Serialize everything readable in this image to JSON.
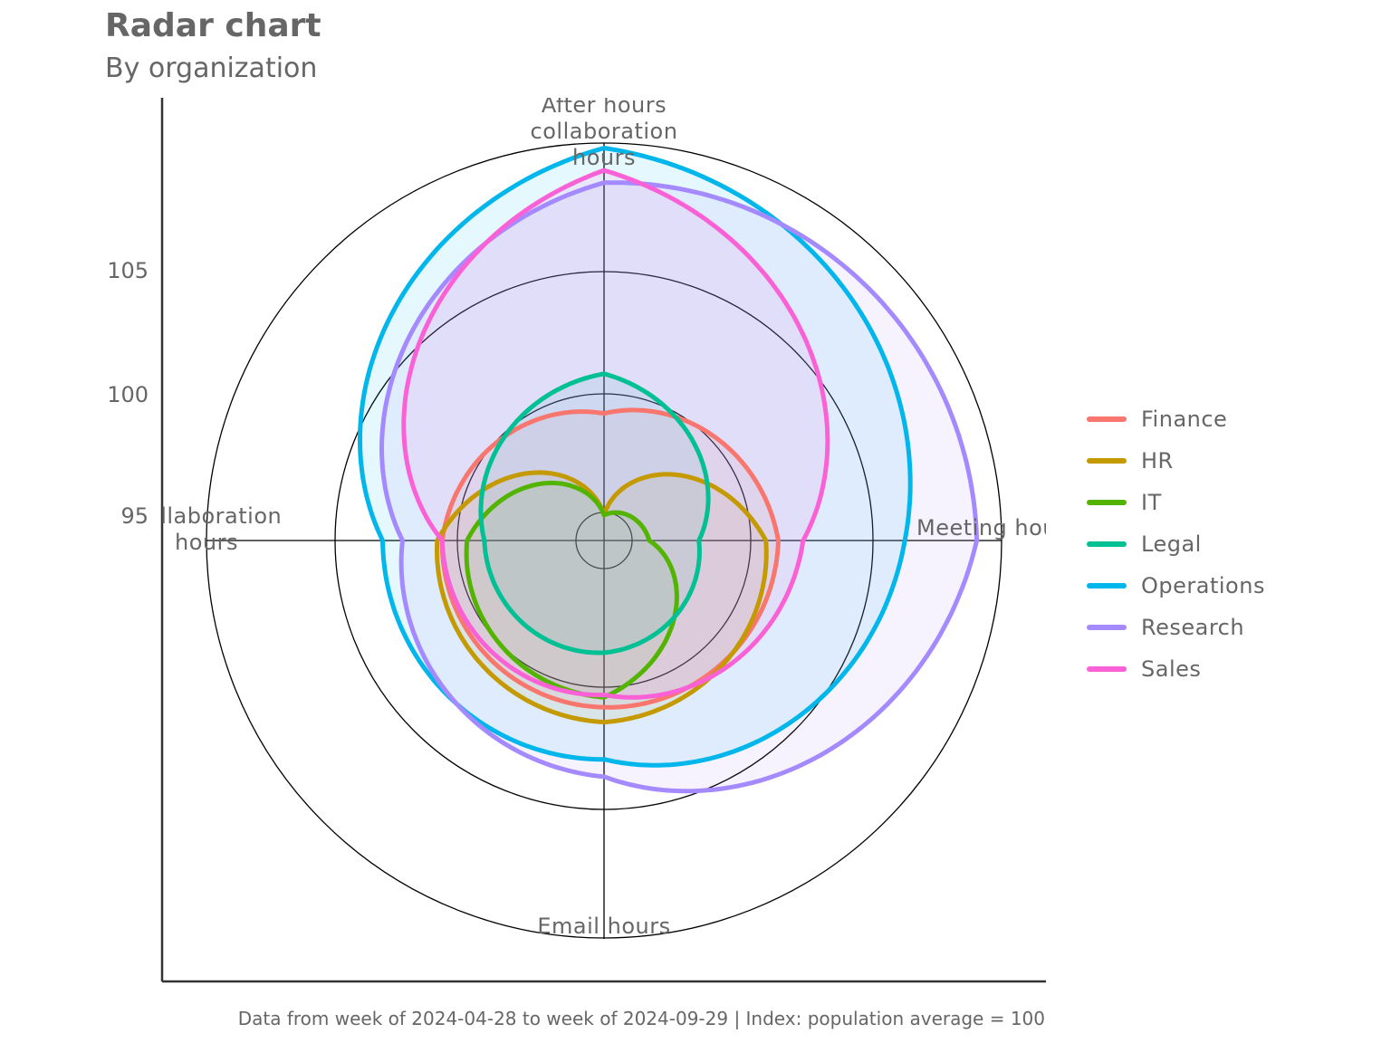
{
  "title": "Radar chart",
  "subtitle": "By organization",
  "caption": "Data from week of 2024-04-28 to week of 2024-09-29 | Index: population average = 100",
  "chart_data": {
    "type": "radar",
    "axes": [
      "After hours collaboration hours",
      "Meeting hours",
      "Email hours",
      "Collaboration hours"
    ],
    "axis_label_lines": [
      [
        "After hours",
        "collaboration",
        "hours"
      ],
      [
        "Meeting hours"
      ],
      [
        "Email hours"
      ],
      [
        "Collaboration",
        "hours"
      ]
    ],
    "y_ticks": [
      95,
      100,
      105
    ],
    "ylim": [
      93.5,
      109.5
    ],
    "legend_position": "right",
    "series": [
      {
        "name": "Finance",
        "color": "#F8766D",
        "values": [
          97.6,
          99.5,
          99.2,
          99.0
        ]
      },
      {
        "name": "HR",
        "color": "#C49A00",
        "values": [
          93.5,
          99.0,
          99.8,
          99.2
        ]
      },
      {
        "name": "IT",
        "color": "#53B400",
        "values": [
          93.5,
          94.3,
          98.8,
          98.0
        ]
      },
      {
        "name": "Legal",
        "color": "#00C094",
        "values": [
          99.2,
          96.3,
          97.0,
          97.3
        ]
      },
      {
        "name": "Operations",
        "color": "#00B6EB",
        "values": [
          108.3,
          104.6,
          101.3,
          101.4
        ]
      },
      {
        "name": "Research",
        "color": "#A58AFF",
        "values": [
          106.9,
          107.5,
          102.0,
          100.6
        ]
      },
      {
        "name": "Sales",
        "color": "#FB61D7",
        "values": [
          107.4,
          100.5,
          98.7,
          99.0
        ]
      }
    ]
  }
}
